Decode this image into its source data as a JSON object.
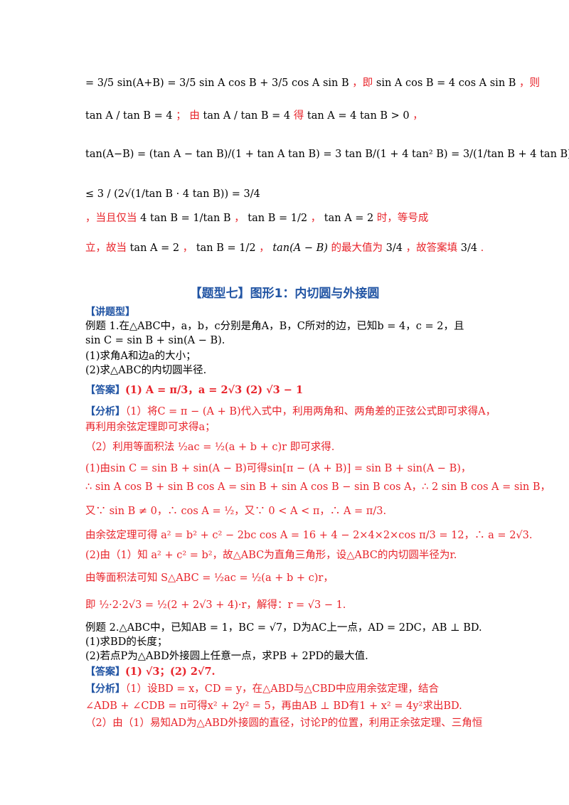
{
  "top": {
    "l1_math": "= 3/5 sin(A+B) = 3/5 sin A cos B + 3/5 cos A sin B",
    "l1_ji": "，即",
    "l1_eq": "sin A cos B = 4 cos A sin B",
    "l1_ze": "，则",
    "l2_frac": "tan A / tan B = 4",
    "l2_semi": "；",
    "l2_you": "由",
    "l2_frac2": "tan A / tan B = 4",
    "l2_de": "得",
    "l2_eq": "tan A = 4 tan B > 0",
    "l2_comma": "，",
    "l3_expr": "tan(A−B) = (tan A − tan B)/(1 + tan A tan B) = 3 tan B/(1 + 4 tan² B) = 3/(1/tan B + 4 tan B)",
    "l4_expr": "≤ 3 / (2√(1/tan B · 4 tan B)) = 3/4",
    "l4_mid": "4 tan B = 1/tan B",
    "l4_when": "，当且仅当",
    "l4_tanB": "tan B = 1/2",
    "l4_tanA": "tan A = 2",
    "l4_end": "时，等号成",
    "l5_a": "立，故当",
    "l5_tanA": "tan A = 2",
    "l5_tanB": "tan B = 1/2",
    "l5_b": "的最大值为",
    "l5_val": "3/4",
    "l5_c": "，故答案填",
    "l5_end": "."
  },
  "section_title": "【题型七】图形1：内切圆与外接圆",
  "jiang_tixing": "【讲题型】",
  "ex1": {
    "l1": "例题 1.在△ABC中，a，b，c分别是角A，B，C所对的边，已知b = 4，c = 2，且",
    "l2": "sin C = sin B + sin(A − B).",
    "q1": "(1)求角A和边a的大小；",
    "q2": "(2)求△ABC的内切圆半径.",
    "answer_tag": "【答案】",
    "answer": "(1) A = π/3，a = 2√3 (2) √3 − 1",
    "analysis_tag": "【分析】",
    "an1": "（1）将C = π − (A + B)代入式中，利用两角和、两角差的正弦公式即可求得A，",
    "an2": "再利用余弦定理即可求得a；",
    "an3": "（2）利用等面积法 ½ac = ½(a + b + c)r 即可求得.",
    "s1": "(1)由sin C = sin B + sin(A − B)可得sin[π − (A + B)] = sin B + sin(A − B)，",
    "s2": "∴ sin A cos B + sin B cos A = sin B + sin A cos B − sin B cos A，∴ 2 sin B cos A = sin B，",
    "s3": "又∵ sin B ≠ 0，∴ cos A = ½，又∵ 0 < A < π，∴ A = π/3.",
    "s4": "由余弦定理可得 a² = b² + c² − 2bc cos A = 16 + 4 − 2×4×2×cos π/3 = 12，∴ a = 2√3.",
    "s5": "(2)由（1）知 a² + c² = b²，故△ABC为直角三角形，设△ABC的内切圆半径为r.",
    "s6": "由等面积法可知 S△ABC = ½ac = ½(a + b + c)r，",
    "s7": "即 ½·2·2√3 = ½(2 + 2√3 + 4)·r，解得：r = √3 − 1."
  },
  "ex2": {
    "l1": "例题 2.△ABC中，已知AB = 1，BC = √7，D为AC上一点，AD = 2DC，AB ⊥ BD.",
    "q1": "(1)求BD的长度；",
    "q2": "(2)若点P为△ABD外接圆上任意一点，求PB + 2PD的最大值.",
    "answer_tag": "【答案】",
    "answer": "(1) √3；(2) 2√7.",
    "analysis_tag": "【分析】",
    "an1": "（1）设BD = x，CD = y，在△ABD与△CBD中应用余弦定理，结合",
    "an2": "∠ADB + ∠CDB = π可得x² + 2y² = 5，再由AB ⊥ BD有1 + x² = 4y²求出BD.",
    "an3": "（2）由（1）易知AD为△ABD外接圆的直径，讨论P的位置，利用正余弦定理、三角恒"
  }
}
